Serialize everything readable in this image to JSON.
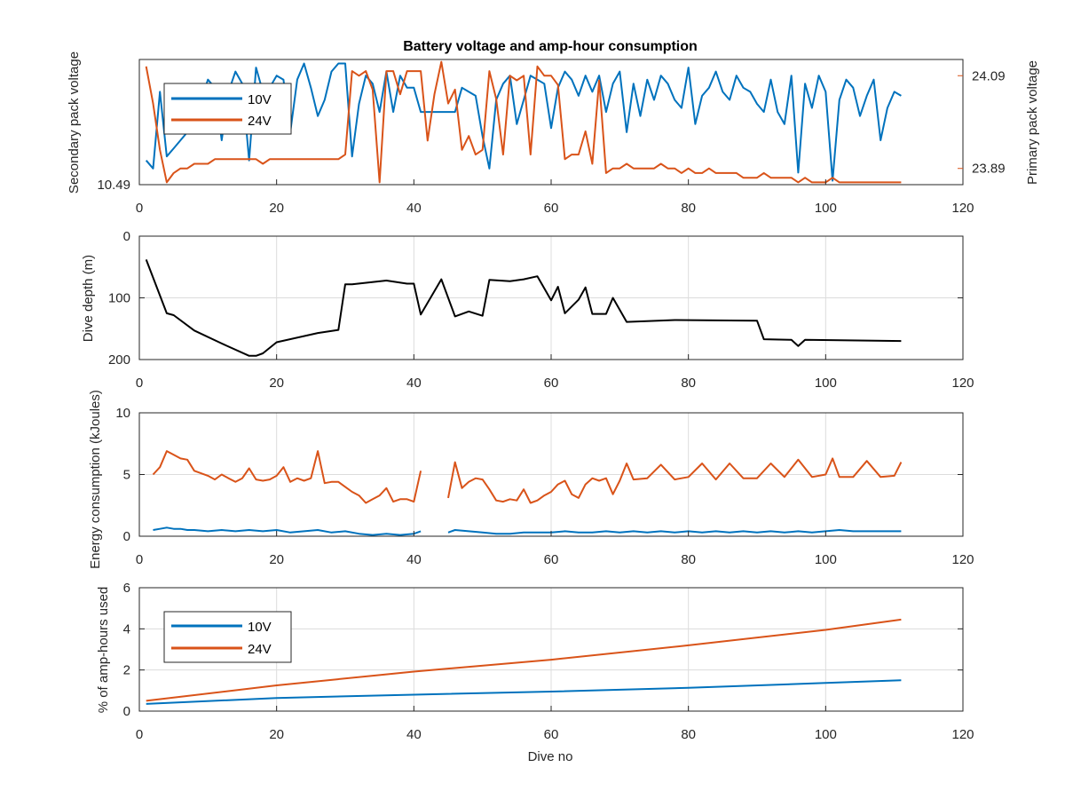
{
  "colors": {
    "blue": "#0072BD",
    "orange": "#D95319",
    "black": "#000000",
    "grid": "#dcdcdc"
  },
  "chart_data": [
    {
      "type": "line",
      "title": "Battery voltage and amp-hour consumption",
      "xlim": [
        0,
        120
      ],
      "xticks": [
        "0",
        "20",
        "40",
        "60",
        "80",
        "100",
        "120"
      ],
      "left_axis": {
        "label": "Secondary pack voltage",
        "ylim": [
          10.49,
          10.8
        ],
        "tick_labels": [
          "10.49"
        ],
        "color": "#0072BD"
      },
      "right_axis": {
        "label": "Primary pack voltage",
        "ylim": [
          23.855,
          24.125
        ],
        "tick_values": [
          24.09,
          23.89
        ],
        "tick_labels": [
          "24.09",
          "23.89"
        ],
        "color": "#D95319"
      },
      "legend": {
        "position": "top-left",
        "entries": [
          "10V",
          "24V"
        ]
      },
      "series": [
        {
          "name": "10V",
          "axis": "left",
          "color": "#0072BD",
          "x": [
            1,
            2,
            3,
            4,
            5,
            6,
            7,
            8,
            9,
            10,
            11,
            12,
            13,
            14,
            15,
            16,
            17,
            18,
            19,
            20,
            21,
            22,
            23,
            24,
            25,
            26,
            27,
            28,
            29,
            30,
            31,
            32,
            33,
            34,
            35,
            36,
            37,
            38,
            39,
            40,
            41,
            42,
            43,
            44,
            45,
            46,
            47,
            48,
            49,
            50,
            51,
            52,
            53,
            54,
            55,
            56,
            57,
            58,
            59,
            60,
            61,
            62,
            63,
            64,
            65,
            66,
            67,
            68,
            69,
            70,
            71,
            72,
            73,
            74,
            75,
            76,
            77,
            78,
            79,
            80,
            81,
            82,
            83,
            84,
            85,
            86,
            87,
            88,
            89,
            90,
            91,
            92,
            93,
            94,
            95,
            96,
            97,
            98,
            99,
            100,
            101,
            102,
            103,
            104,
            105,
            106,
            107,
            108,
            109,
            110,
            111
          ],
          "y": [
            10.55,
            10.53,
            10.72,
            10.56,
            10.58,
            10.6,
            10.62,
            10.64,
            10.7,
            10.75,
            10.73,
            10.6,
            10.72,
            10.77,
            10.74,
            10.55,
            10.78,
            10.72,
            10.73,
            10.76,
            10.75,
            10.62,
            10.75,
            10.79,
            10.73,
            10.66,
            10.7,
            10.77,
            10.79,
            10.79,
            10.56,
            10.69,
            10.76,
            10.74,
            10.67,
            10.77,
            10.67,
            10.76,
            10.73,
            10.73,
            10.67,
            10.67,
            10.67,
            10.67,
            10.67,
            10.67,
            10.73,
            10.72,
            10.71,
            10.61,
            10.53,
            10.7,
            10.74,
            10.76,
            10.64,
            10.7,
            10.76,
            10.75,
            10.74,
            10.63,
            10.73,
            10.77,
            10.75,
            10.71,
            10.76,
            10.72,
            10.76,
            10.67,
            10.74,
            10.77,
            10.62,
            10.74,
            10.66,
            10.75,
            10.7,
            10.76,
            10.74,
            10.7,
            10.68,
            10.78,
            10.64,
            10.71,
            10.73,
            10.77,
            10.72,
            10.7,
            10.76,
            10.73,
            10.72,
            10.69,
            10.67,
            10.75,
            10.67,
            10.64,
            10.76,
            10.52,
            10.74,
            10.68,
            10.76,
            10.72,
            10.5,
            10.7,
            10.75,
            10.73,
            10.66,
            10.71,
            10.75,
            10.6,
            10.68,
            10.72,
            10.71
          ]
        },
        {
          "name": "24V",
          "axis": "right",
          "color": "#D95319",
          "x": [
            1,
            2,
            3,
            4,
            5,
            6,
            7,
            8,
            9,
            10,
            11,
            12,
            13,
            14,
            15,
            16,
            17,
            18,
            19,
            20,
            21,
            22,
            23,
            24,
            25,
            26,
            27,
            28,
            29,
            30,
            31,
            32,
            33,
            34,
            35,
            36,
            37,
            38,
            39,
            40,
            41,
            42,
            43,
            44,
            45,
            46,
            47,
            48,
            49,
            50,
            51,
            52,
            53,
            54,
            55,
            56,
            57,
            58,
            59,
            60,
            61,
            62,
            63,
            64,
            65,
            66,
            67,
            68,
            69,
            70,
            71,
            72,
            73,
            74,
            75,
            76,
            77,
            78,
            79,
            80,
            81,
            82,
            83,
            84,
            85,
            86,
            87,
            88,
            89,
            90,
            91,
            92,
            93,
            94,
            95,
            96,
            97,
            98,
            99,
            100,
            101,
            102,
            103,
            104,
            105,
            106,
            107,
            108,
            109,
            110,
            111
          ],
          "y": [
            24.11,
            24.03,
            23.93,
            23.86,
            23.88,
            23.89,
            23.89,
            23.9,
            23.9,
            23.9,
            23.91,
            23.91,
            23.91,
            23.91,
            23.91,
            23.91,
            23.91,
            23.9,
            23.91,
            23.91,
            23.91,
            23.91,
            23.91,
            23.91,
            23.91,
            23.91,
            23.91,
            23.91,
            23.91,
            23.92,
            24.1,
            24.09,
            24.1,
            24.06,
            23.86,
            24.1,
            24.1,
            24.05,
            24.1,
            24.1,
            24.1,
            23.95,
            24.05,
            24.12,
            24.03,
            24.06,
            23.93,
            23.96,
            23.92,
            23.93,
            24.1,
            24.04,
            23.92,
            24.09,
            24.08,
            24.09,
            23.92,
            24.11,
            24.09,
            24.09,
            24.07,
            23.91,
            23.92,
            23.92,
            23.97,
            23.9,
            24.08,
            23.88,
            23.89,
            23.89,
            23.9,
            23.89,
            23.89,
            23.89,
            23.89,
            23.9,
            23.89,
            23.89,
            23.88,
            23.89,
            23.88,
            23.88,
            23.89,
            23.88,
            23.88,
            23.88,
            23.88,
            23.87,
            23.87,
            23.87,
            23.88,
            23.87,
            23.87,
            23.87,
            23.87,
            23.86,
            23.87,
            23.86,
            23.86,
            23.86,
            23.87,
            23.86,
            23.86,
            23.86,
            23.86,
            23.86,
            23.86,
            23.86,
            23.86,
            23.86,
            23.86
          ]
        }
      ]
    },
    {
      "type": "line",
      "xlim": [
        0,
        120
      ],
      "xticks": [
        "0",
        "20",
        "40",
        "60",
        "80",
        "100",
        "120"
      ],
      "ylabel": "Dive depth (m)",
      "ylim": [
        200,
        0
      ],
      "yreverse": true,
      "ytick_values": [
        0,
        100,
        200
      ],
      "ytick_labels": [
        "0",
        "100",
        "200"
      ],
      "series": [
        {
          "color": "#000000",
          "x": [
            1,
            4,
            5,
            8,
            12,
            16,
            17,
            18,
            20,
            26,
            29,
            30,
            31,
            36,
            39,
            40,
            41,
            44,
            46,
            48,
            50,
            51,
            54,
            56,
            58,
            60,
            61,
            62,
            64,
            65,
            66,
            68,
            69,
            71,
            78,
            90,
            91,
            95,
            96,
            97,
            111
          ],
          "y": [
            38,
            125,
            128,
            153,
            174,
            194,
            194,
            190,
            172,
            157,
            152,
            78,
            78,
            72,
            77,
            77,
            127,
            70,
            130,
            122,
            129,
            71,
            73,
            70,
            65,
            104,
            82,
            125,
            103,
            83,
            126,
            126,
            100,
            139,
            136,
            137,
            167,
            168,
            178,
            168,
            170
          ]
        }
      ]
    },
    {
      "type": "line",
      "xlim": [
        0,
        120
      ],
      "xticks": [
        "0",
        "20",
        "40",
        "60",
        "80",
        "100",
        "120"
      ],
      "ylabel": "Energy consumption (kJoules)",
      "ylim": [
        0,
        10
      ],
      "ytick_labels": [
        "0",
        "5",
        "10"
      ],
      "series": [
        {
          "color": "#0072BD",
          "segments": [
            {
              "x": [
                2,
                3,
                4,
                5,
                6,
                7,
                8,
                10,
                12,
                14,
                16,
                18,
                20,
                22,
                24,
                26,
                28,
                30,
                32,
                34,
                36,
                38,
                40,
                41
              ],
              "y": [
                0.5,
                0.6,
                0.7,
                0.6,
                0.6,
                0.5,
                0.5,
                0.4,
                0.5,
                0.4,
                0.5,
                0.4,
                0.5,
                0.3,
                0.4,
                0.5,
                0.3,
                0.4,
                0.2,
                0.1,
                0.2,
                0.1,
                0.2,
                0.4
              ]
            },
            {
              "x": [
                45,
                46,
                48,
                50,
                52,
                54,
                56,
                58,
                60,
                62,
                64,
                66,
                68,
                70,
                72,
                74,
                76,
                78,
                80,
                82,
                84,
                86,
                88,
                90,
                92,
                94,
                96,
                98,
                100,
                102,
                104,
                106,
                108,
                110,
                111
              ],
              "y": [
                0.3,
                0.5,
                0.4,
                0.3,
                0.2,
                0.2,
                0.3,
                0.3,
                0.3,
                0.4,
                0.3,
                0.3,
                0.4,
                0.3,
                0.4,
                0.3,
                0.4,
                0.3,
                0.4,
                0.3,
                0.4,
                0.3,
                0.4,
                0.3,
                0.4,
                0.3,
                0.4,
                0.3,
                0.4,
                0.5,
                0.4,
                0.4,
                0.4,
                0.4,
                0.4
              ]
            }
          ]
        },
        {
          "color": "#D95319",
          "segments": [
            {
              "x": [
                2,
                3,
                4,
                5,
                6,
                7,
                8,
                10,
                11,
                12,
                13,
                14,
                15,
                16,
                17,
                18,
                19,
                20,
                21,
                22,
                23,
                24,
                25,
                26,
                27,
                28,
                29,
                30,
                31,
                32,
                33,
                34,
                35,
                36,
                37,
                38,
                39,
                40,
                41
              ],
              "y": [
                5.0,
                5.6,
                6.9,
                6.6,
                6.3,
                6.2,
                5.3,
                4.9,
                4.6,
                5.0,
                4.7,
                4.4,
                4.7,
                5.5,
                4.6,
                4.5,
                4.6,
                4.9,
                5.6,
                4.4,
                4.7,
                4.5,
                4.7,
                6.9,
                4.3,
                4.4,
                4.4,
                4.0,
                3.6,
                3.3,
                2.7,
                3.0,
                3.3,
                3.9,
                2.8,
                3.0,
                3.0,
                2.8,
                5.3
              ]
            },
            {
              "x": [
                45,
                46,
                47,
                48,
                49,
                50,
                51,
                52,
                53,
                54,
                55,
                56,
                57,
                58,
                59,
                60,
                61,
                62,
                63,
                64,
                65,
                66,
                67,
                68,
                69,
                70,
                71,
                72,
                74,
                76,
                78,
                80,
                82,
                84,
                86,
                88,
                90,
                92,
                94,
                96,
                98,
                100,
                101,
                102,
                104,
                106,
                108,
                110,
                111
              ],
              "y": [
                3.1,
                6.0,
                3.9,
                4.4,
                4.7,
                4.6,
                3.8,
                2.9,
                2.8,
                3.0,
                2.9,
                3.8,
                2.7,
                2.9,
                3.3,
                3.6,
                4.2,
                4.5,
                3.4,
                3.1,
                4.2,
                4.7,
                4.5,
                4.7,
                3.4,
                4.5,
                5.9,
                4.6,
                4.7,
                5.8,
                4.6,
                4.8,
                5.9,
                4.6,
                5.9,
                4.7,
                4.7,
                5.9,
                4.8,
                6.2,
                4.8,
                5.0,
                6.3,
                4.8,
                4.8,
                6.1,
                4.8,
                4.9,
                6.0
              ]
            }
          ]
        }
      ]
    },
    {
      "type": "line",
      "xlim": [
        0,
        120
      ],
      "xticks": [
        "0",
        "20",
        "40",
        "60",
        "80",
        "100",
        "120"
      ],
      "xlabel": "Dive no",
      "ylabel": "% of amp-hours used",
      "ylim": [
        0,
        6
      ],
      "ytick_labels": [
        "0",
        "2",
        "4",
        "6"
      ],
      "legend": {
        "position": "top-left",
        "entries": [
          "10V",
          "24V"
        ]
      },
      "series": [
        {
          "name": "10V",
          "color": "#0072BD",
          "x": [
            1,
            20,
            40,
            60,
            80,
            100,
            111
          ],
          "y": [
            0.35,
            0.64,
            0.8,
            0.95,
            1.13,
            1.37,
            1.5
          ]
        },
        {
          "name": "24V",
          "color": "#D95319",
          "x": [
            1,
            20,
            40,
            60,
            80,
            100,
            111
          ],
          "y": [
            0.5,
            1.25,
            1.92,
            2.5,
            3.2,
            3.95,
            4.45
          ]
        }
      ]
    }
  ]
}
